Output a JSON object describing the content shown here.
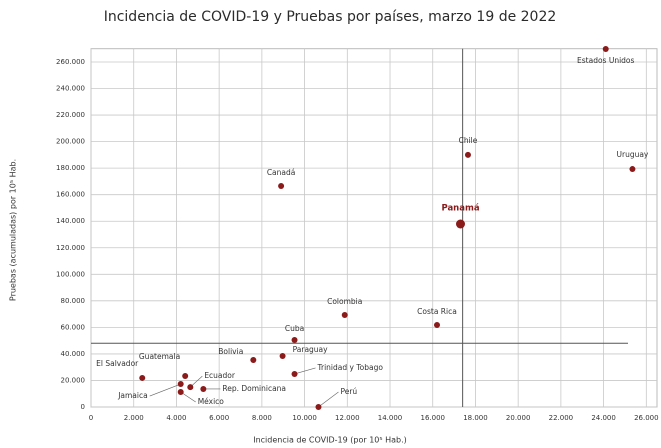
{
  "chart_data": {
    "type": "scatter",
    "title": "Incidencia de COVID-19 y Pruebas por países, marzo 19 de 2022",
    "x_label": "Incidencia de COVID-19 (por 10⁵ Hab.)",
    "y_label": "Pruebas (acumuladas) por 10⁵ Hab.",
    "color": "#8b1a1a",
    "grid": true,
    "xlim": [
      0,
      26500
    ],
    "ylim": [
      0,
      270000
    ],
    "xticks": [
      0,
      {
        "value": 2000,
        "label": "2.000"
      },
      {
        "value": 4000,
        "label": "4.000"
      },
      {
        "value": 6000,
        "label": "6.000"
      },
      {
        "value": 8000,
        "label": "8.000"
      },
      {
        "value": 10000,
        "label": "10.000"
      },
      {
        "value": 12000,
        "label": "12.000"
      },
      {
        "value": 14000,
        "label": "14.000"
      },
      {
        "value": 16000,
        "label": "16.000"
      },
      {
        "value": 18000,
        "label": "18.000"
      },
      {
        "value": 20000,
        "label": "20.000"
      },
      {
        "value": 22000,
        "label": "22.000"
      },
      {
        "value": 24000,
        "label": "24.000"
      },
      {
        "value": 26000,
        "label": "26.000"
      }
    ],
    "yticks": [
      0,
      {
        "value": 20000,
        "label": "20.000"
      },
      {
        "value": 40000,
        "label": "40.000"
      },
      {
        "value": 60000,
        "label": "60.000"
      },
      {
        "value": 80000,
        "label": "80.000"
      },
      {
        "value": 100000,
        "label": "100.000"
      },
      {
        "value": 120000,
        "label": "120.000"
      },
      {
        "value": 140000,
        "label": "140.000"
      },
      {
        "value": 160000,
        "label": "160.000"
      },
      {
        "value": 180000,
        "label": "180.000"
      },
      {
        "value": 200000,
        "label": "200.000"
      },
      {
        "value": 220000,
        "label": "220.000"
      },
      {
        "value": 240000,
        "label": "240.000"
      },
      {
        "value": 260000,
        "label": "260.000"
      }
    ],
    "reference_lines": {
      "x": 17400,
      "y": 48000
    },
    "highlight": "Panamá",
    "labels": [
      "Estados Unidos",
      "Chile",
      "Uruguay",
      "Canadá",
      "Panamá",
      "Colombia",
      "Costa Rica",
      "Cuba",
      "Paraguay",
      "Bolivia",
      "Trinidad y Tobago",
      "Guatemala",
      "El Salvador",
      "Ecuador",
      "Rep. Dominicana",
      "Jamaica",
      "México",
      "Perú"
    ],
    "x": [
      24100,
      17650,
      25350,
      8900,
      17300,
      11880,
      16200,
      9530,
      8970,
      7600,
      9530,
      4410,
      2400,
      4650,
      5260,
      4200,
      4200,
      10650
    ],
    "y": [
      269800,
      190000,
      179300,
      166500,
      137900,
      69300,
      61800,
      50500,
      38400,
      35400,
      24900,
      23400,
      21900,
      15000,
      13600,
      17300,
      11300,
      0
    ]
  }
}
